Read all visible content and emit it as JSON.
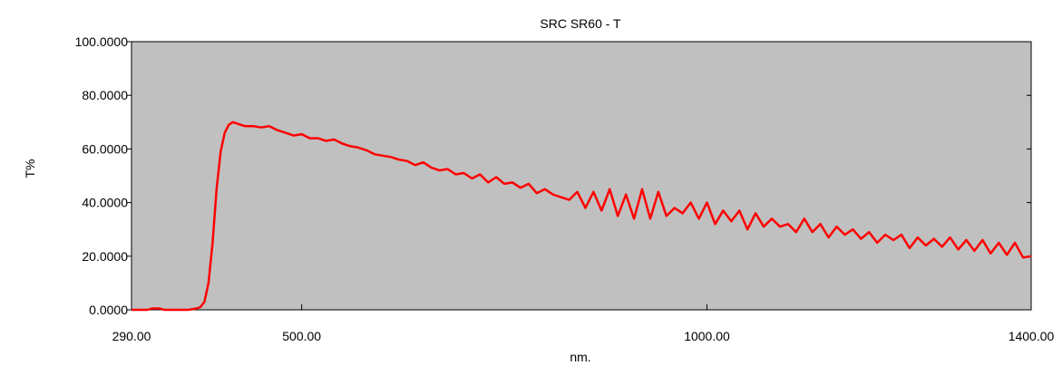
{
  "chart_data": {
    "type": "line",
    "title": "SRC SR60 - T",
    "xlabel": "nm.",
    "ylabel": "T%",
    "xlim": [
      290,
      1400
    ],
    "ylim": [
      0,
      100
    ],
    "x_ticks": [
      290,
      500,
      1000,
      1400
    ],
    "x_tick_labels": [
      "290.00",
      "500.00",
      "1000.00",
      "1400.00"
    ],
    "y_ticks": [
      0,
      20,
      40,
      60,
      80,
      100
    ],
    "y_tick_labels": [
      "0.0000",
      "20.0000",
      "40.0000",
      "60.0000",
      "80.0000",
      "100.0000"
    ],
    "grid": false,
    "plot_background": "#c0c0c0",
    "series": [
      {
        "color": "#ff0000",
        "x": [
          290,
          300,
          310,
          315,
          320,
          325,
          330,
          340,
          350,
          360,
          370,
          375,
          380,
          385,
          390,
          395,
          400,
          405,
          410,
          415,
          420,
          425,
          430,
          440,
          450,
          460,
          470,
          480,
          490,
          500,
          510,
          520,
          530,
          540,
          550,
          560,
          570,
          580,
          590,
          600,
          610,
          620,
          630,
          640,
          650,
          660,
          670,
          680,
          690,
          700,
          710,
          720,
          730,
          740,
          750,
          760,
          770,
          780,
          790,
          800,
          810,
          820,
          830,
          840,
          850,
          860,
          870,
          880,
          890,
          900,
          910,
          920,
          930,
          940,
          950,
          960,
          970,
          980,
          990,
          1000,
          1010,
          1020,
          1030,
          1040,
          1050,
          1060,
          1070,
          1080,
          1090,
          1100,
          1110,
          1120,
          1130,
          1140,
          1150,
          1160,
          1170,
          1180,
          1190,
          1200,
          1210,
          1220,
          1230,
          1240,
          1250,
          1260,
          1270,
          1280,
          1290,
          1300,
          1310,
          1320,
          1330,
          1340,
          1350,
          1360,
          1370,
          1380,
          1390,
          1400
        ],
        "y": [
          0,
          0,
          0,
          0.5,
          0.5,
          0.5,
          0,
          0,
          0,
          0,
          0.5,
          1,
          3,
          10,
          25,
          45,
          59,
          66,
          69,
          70,
          69.5,
          69,
          68.5,
          68.5,
          68,
          68.5,
          67,
          66,
          65,
          65.5,
          64,
          64,
          63,
          63.5,
          62,
          61,
          60.5,
          59.5,
          58,
          57.5,
          57,
          56,
          55.5,
          54,
          55,
          53,
          52,
          52.5,
          50.5,
          51,
          49,
          50.5,
          47.5,
          49.5,
          47,
          47.5,
          45.5,
          47,
          43.5,
          45,
          43,
          42,
          41,
          44,
          38,
          44,
          37,
          45,
          35,
          43,
          34,
          45,
          34,
          44,
          35,
          38,
          36,
          40,
          34,
          40,
          32,
          37,
          33,
          37,
          30,
          36,
          31,
          34,
          31,
          32,
          29,
          34,
          29,
          32,
          27,
          31,
          28,
          30,
          26.5,
          29,
          25,
          28,
          26,
          28,
          23,
          27,
          24,
          26.5,
          23.5,
          27,
          22.5,
          26,
          22,
          26,
          21,
          25,
          20.5,
          25,
          19.5,
          20
        ]
      }
    ]
  }
}
